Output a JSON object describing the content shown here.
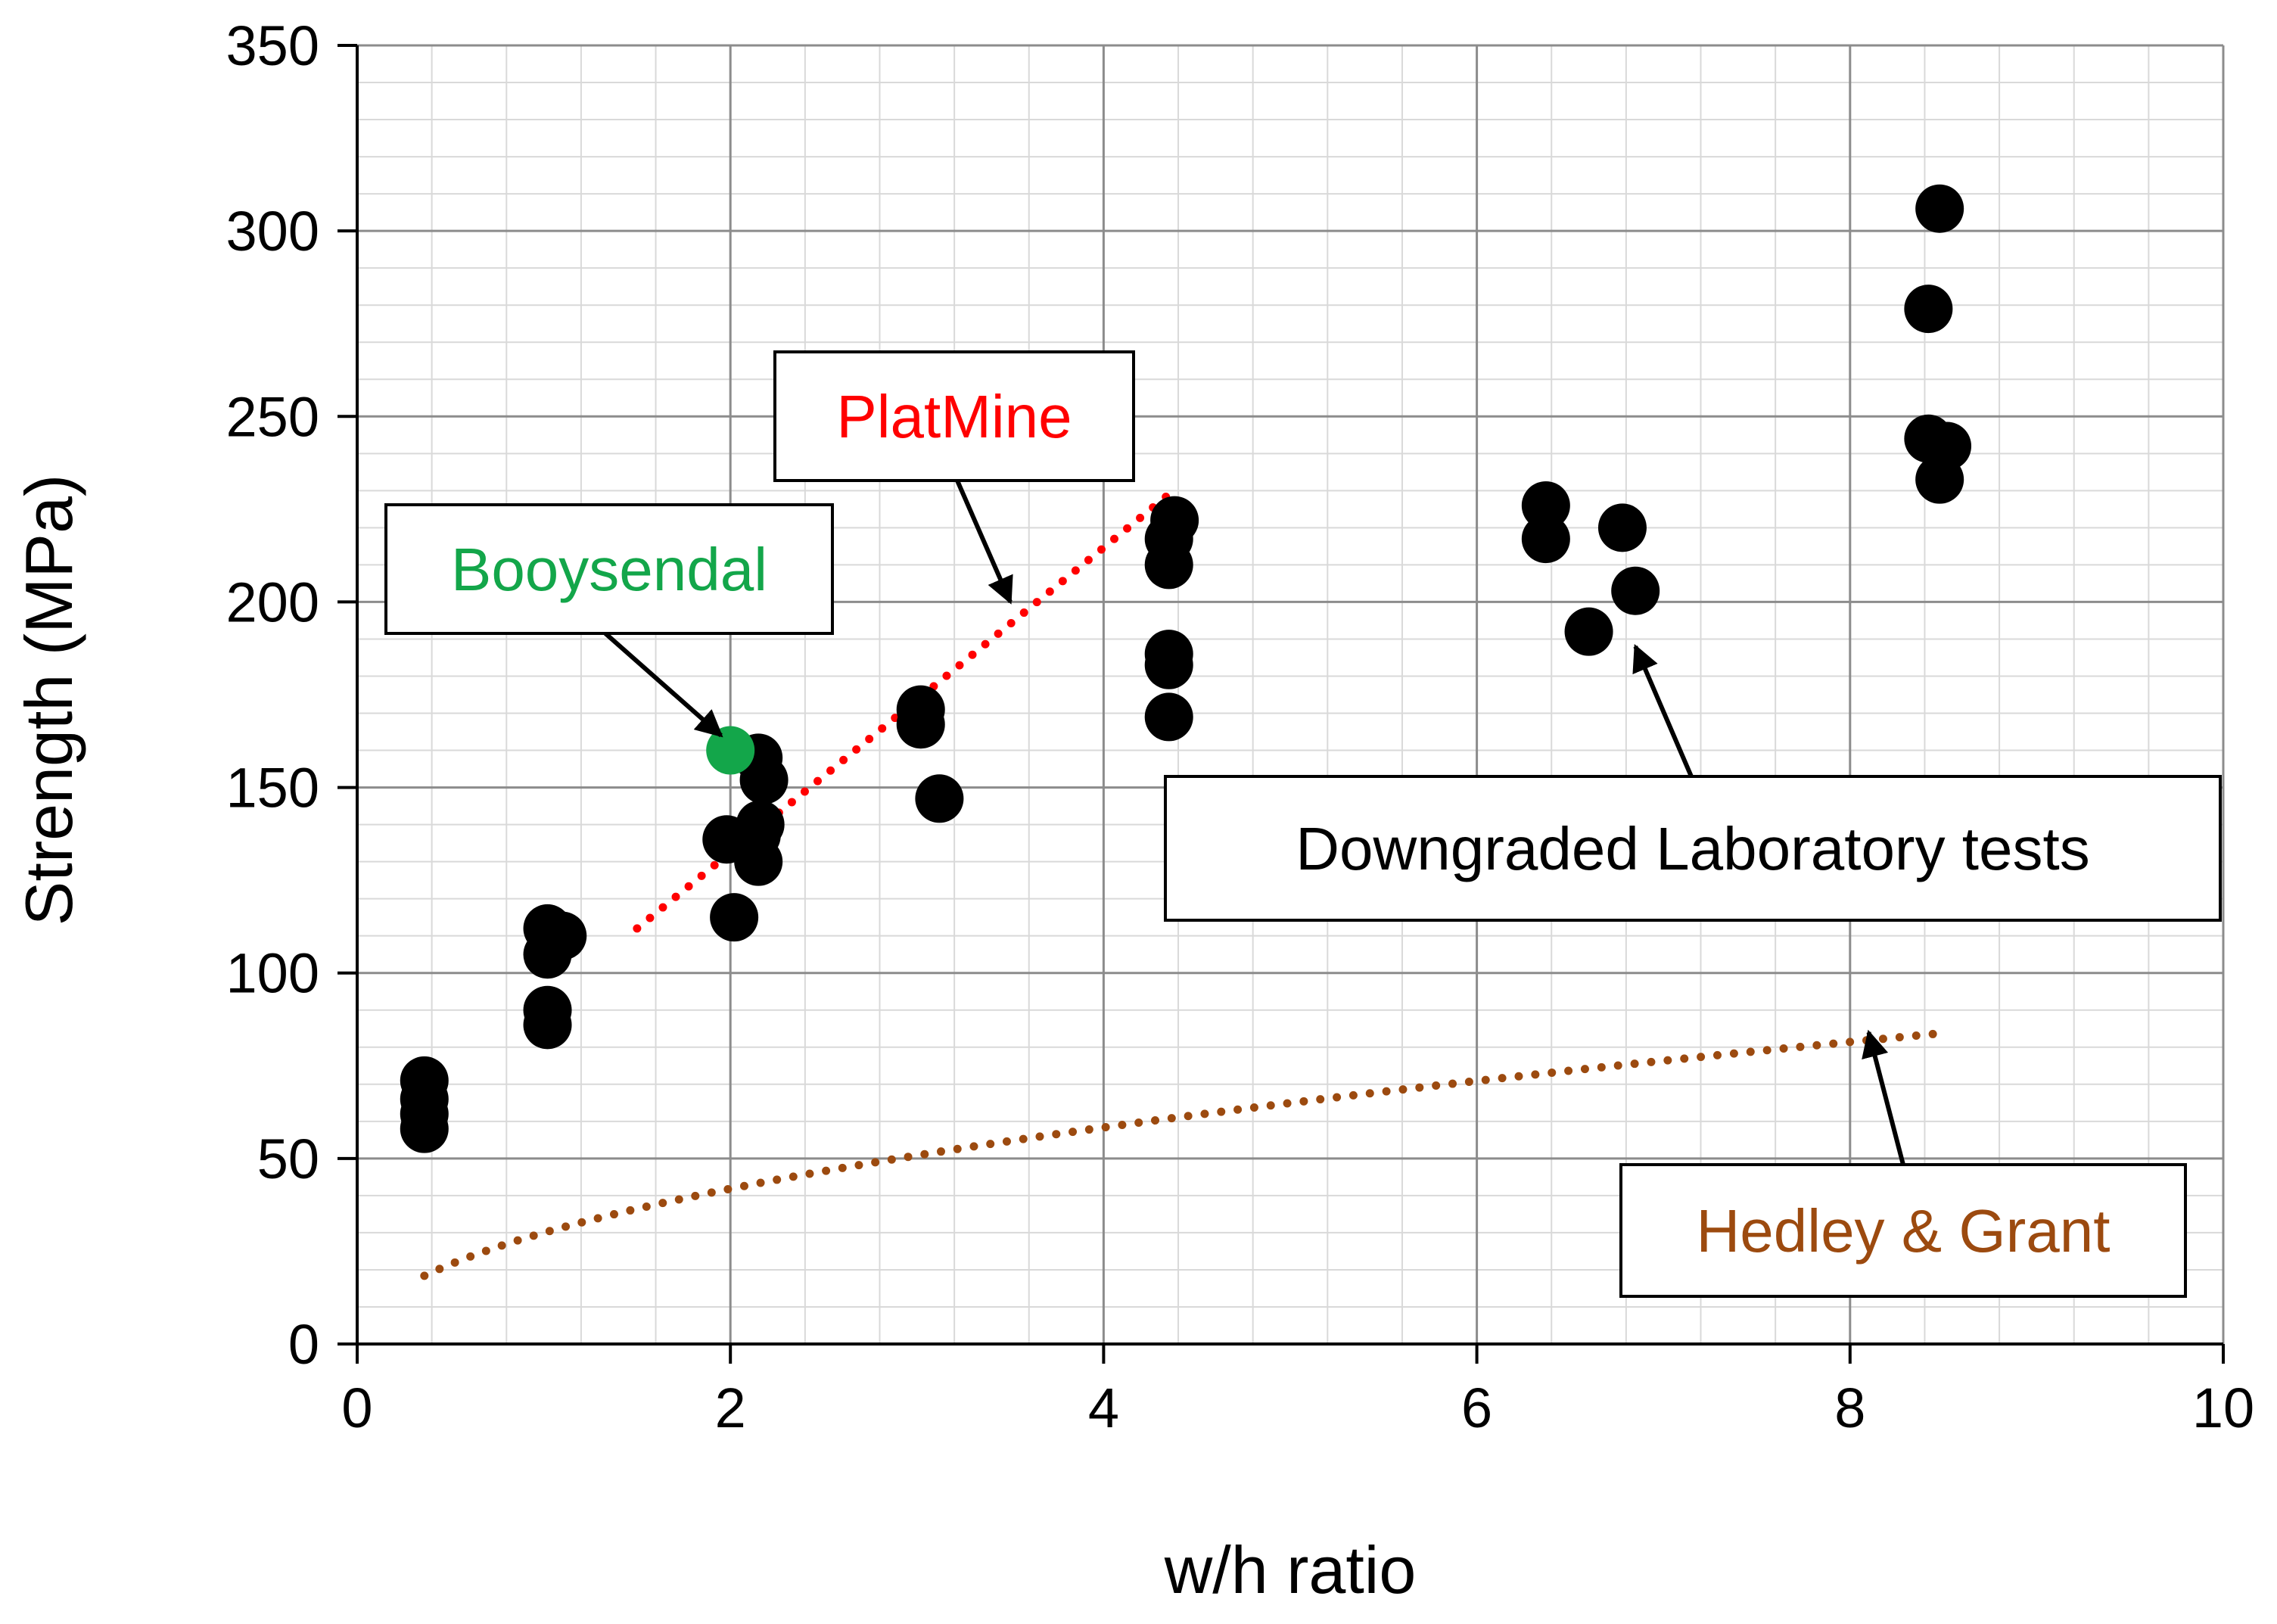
{
  "chart_data": {
    "type": "scatter",
    "title": "",
    "xlabel": "w/h ratio",
    "ylabel": "Strength (MPa)",
    "xlim": [
      0,
      10
    ],
    "ylim": [
      0,
      350
    ],
    "xticks": [
      "0",
      "2",
      "4",
      "6",
      "8",
      "10"
    ],
    "yticks": [
      "0",
      "50",
      "100",
      "150",
      "200",
      "250",
      "300",
      "350"
    ],
    "grid": true,
    "legend": "none",
    "colors": {
      "lab": "#000000",
      "booysendal": "#13a64a",
      "platmine": "#ff0000",
      "hedley": "#9c4a0f"
    },
    "series": [
      {
        "name": "Laboratory tests",
        "points": [
          [
            0.36,
            71
          ],
          [
            0.36,
            66
          ],
          [
            0.36,
            62
          ],
          [
            0.36,
            58
          ],
          [
            1.02,
            112
          ],
          [
            1.1,
            110
          ],
          [
            1.02,
            105
          ],
          [
            1.02,
            90
          ],
          [
            1.02,
            86
          ],
          [
            2.15,
            158
          ],
          [
            2.18,
            152
          ],
          [
            2.16,
            140
          ],
          [
            2.14,
            137
          ],
          [
            1.98,
            136
          ],
          [
            2.15,
            130
          ],
          [
            2.02,
            115
          ],
          [
            3.02,
            171
          ],
          [
            3.02,
            167
          ],
          [
            3.12,
            147
          ],
          [
            4.38,
            222
          ],
          [
            4.35,
            217
          ],
          [
            4.35,
            210
          ],
          [
            4.35,
            186
          ],
          [
            4.35,
            183
          ],
          [
            4.35,
            169
          ],
          [
            6.37,
            226
          ],
          [
            6.37,
            217
          ],
          [
            6.78,
            220
          ],
          [
            6.85,
            203
          ],
          [
            6.6,
            192
          ],
          [
            8.48,
            306
          ],
          [
            8.42,
            279
          ],
          [
            8.42,
            244
          ],
          [
            8.52,
            242
          ],
          [
            8.48,
            233
          ]
        ]
      },
      {
        "name": "Booysendal",
        "points": [
          [
            2.0,
            160
          ]
        ]
      },
      {
        "name": "PlatMine",
        "line": [
          [
            1.5,
            112
          ],
          [
            4.35,
            229
          ]
        ]
      },
      {
        "name": "Hedley & Grant",
        "line_function": {
          "a": 30,
          "exp": 0.48,
          "x_from": 0.36,
          "x_to": 8.5
        }
      }
    ],
    "annotations": [
      {
        "id": "booysendal",
        "text": "Booysendal",
        "arrow_to": [
          1.95,
          164
        ]
      },
      {
        "id": "platmine",
        "text": "PlatMine",
        "arrow_to": [
          3.5,
          200
        ]
      },
      {
        "id": "downgraded",
        "text": "Downgraded Laboratory tests",
        "arrow_to": [
          6.85,
          188
        ]
      },
      {
        "id": "hedley",
        "text": "Hedley & Grant",
        "arrow_to": [
          8.1,
          84
        ]
      }
    ]
  }
}
